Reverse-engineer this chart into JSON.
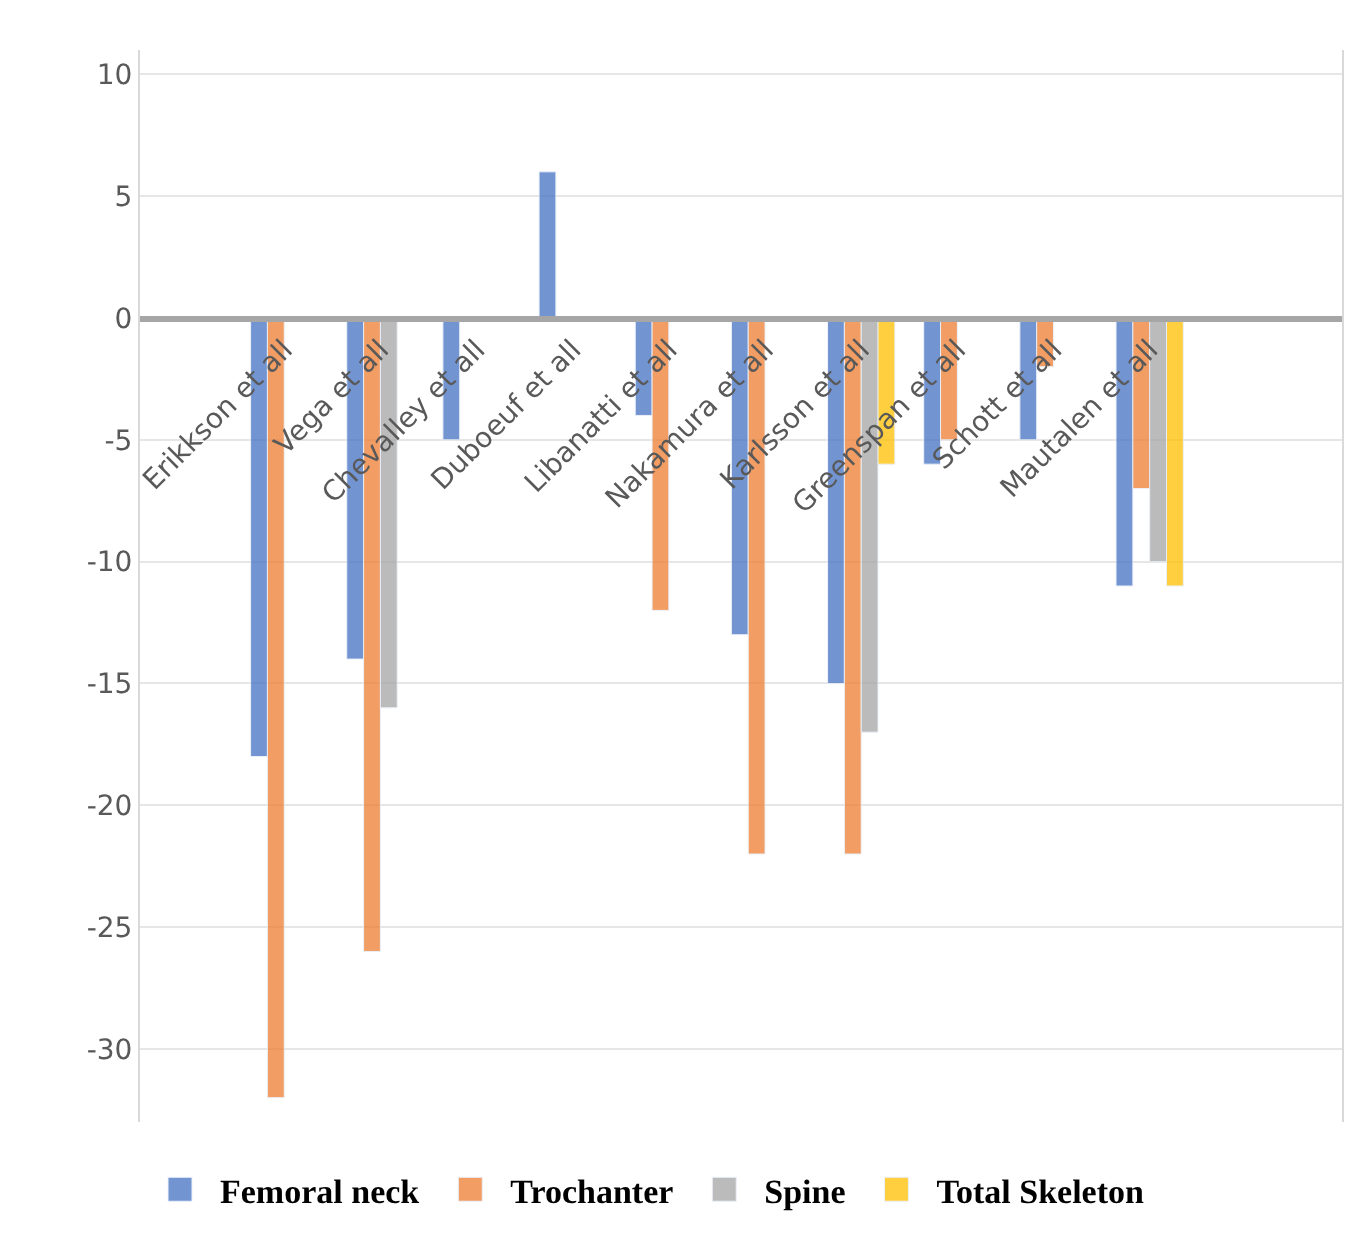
{
  "chart_data": {
    "type": "bar",
    "categories": [
      "Erikkson et all",
      "Vega et all",
      "Chevalley et all",
      "Duboeuf et all",
      "Libanatti et all",
      "Nakamura et all",
      "Karlsson et all",
      "Greenspan et all",
      "Schott et all",
      "Mautalen et all"
    ],
    "series": [
      {
        "name": "Femoral neck",
        "color": "#4472c4",
        "values": [
          -18,
          -14,
          -5,
          6,
          -4,
          -13,
          -15,
          -6,
          -5,
          -11
        ]
      },
      {
        "name": "Trochanter",
        "color": "#ed7d31",
        "values": [
          -32,
          -26,
          null,
          null,
          -12,
          -22,
          -22,
          -5,
          -2,
          -7
        ]
      },
      {
        "name": "Spine",
        "color": "#a5a5a5",
        "values": [
          null,
          -16,
          null,
          null,
          null,
          null,
          -17,
          null,
          null,
          -10
        ]
      },
      {
        "name": "Total Skeleton",
        "color": "#ffc000",
        "values": [
          null,
          null,
          null,
          null,
          null,
          null,
          -6,
          null,
          null,
          -11
        ]
      }
    ],
    "ylim": [
      -33,
      11
    ],
    "yticks": [
      -30,
      -25,
      -20,
      -15,
      -10,
      -5,
      0,
      5,
      10
    ],
    "grid": "y",
    "legend": "bottom"
  }
}
